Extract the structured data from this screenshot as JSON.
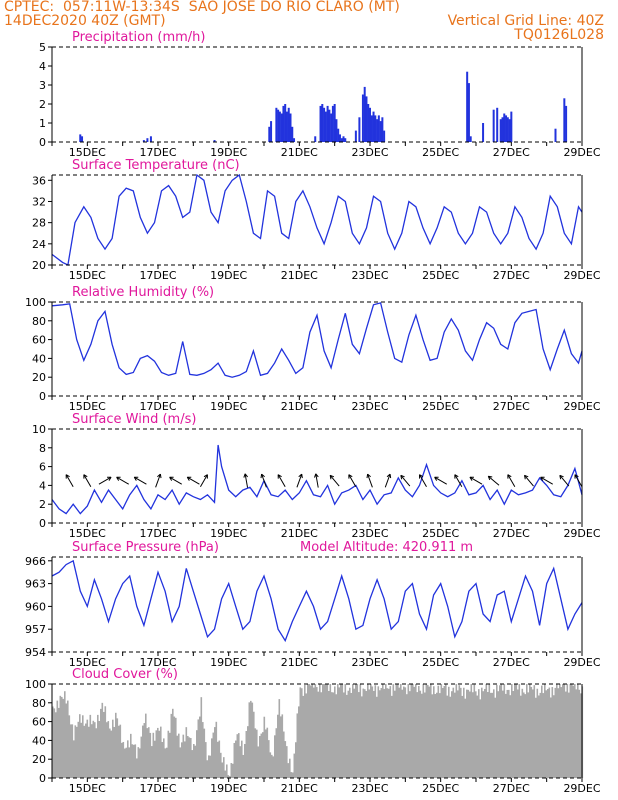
{
  "header": {
    "line1_left": "CPTEC:  057:11W-13:34S  SAO JOSE DO RIO CLARO (MT)",
    "line2_left": "14DEC2020 40Z (GMT)",
    "line2_right": "Vertical Grid Line: 40Z",
    "line3_right": "TQ0126L028"
  },
  "colors": {
    "header": "#e8741c",
    "title": "#e0189c",
    "line": "#2233dd",
    "bar": "#2233dd",
    "cloud": "#a9a9a9"
  },
  "date_labels": [
    "15DEC",
    "17DEC",
    "19DEC",
    "21DEC",
    "23DEC",
    "25DEC",
    "27DEC",
    "29DEC"
  ],
  "chart_data": [
    {
      "id": "precip",
      "type": "bar",
      "title": "Precipitation (mm/h)",
      "x_range_days": [
        14.0,
        29.0
      ],
      "ylim": [
        0,
        5
      ],
      "yticks": [
        0,
        1,
        2,
        3,
        4,
        5
      ],
      "x": [
        14.8,
        14.85,
        16.6,
        16.7,
        16.8,
        18.6,
        20.15,
        20.2,
        20.35,
        20.4,
        20.45,
        20.5,
        20.55,
        20.6,
        20.65,
        20.7,
        20.75,
        20.8,
        20.85,
        21.45,
        21.6,
        21.65,
        21.7,
        21.75,
        21.8,
        21.85,
        21.9,
        21.95,
        22.0,
        22.05,
        22.1,
        22.15,
        22.2,
        22.25,
        22.3,
        22.6,
        22.7,
        22.8,
        22.85,
        22.9,
        22.95,
        23.0,
        23.05,
        23.1,
        23.15,
        23.2,
        23.25,
        23.3,
        23.35,
        23.4,
        25.75,
        25.8,
        25.85,
        26.2,
        26.5,
        26.6,
        26.7,
        26.75,
        26.8,
        26.85,
        26.9,
        26.95,
        27.0,
        28.25,
        28.5,
        28.55
      ],
      "values": [
        0.4,
        0.3,
        0.1,
        0.2,
        0.3,
        0.1,
        0.8,
        1.1,
        1.8,
        1.7,
        1.6,
        1.5,
        1.9,
        2.0,
        1.6,
        1.8,
        1.5,
        0.8,
        0.2,
        0.3,
        1.9,
        2.0,
        1.8,
        1.6,
        1.9,
        1.7,
        1.5,
        1.9,
        2.0,
        1.2,
        0.7,
        0.4,
        0.2,
        0.3,
        0.2,
        0.6,
        1.3,
        2.5,
        2.9,
        2.4,
        2.0,
        1.8,
        1.4,
        1.6,
        1.4,
        1.2,
        1.4,
        1.1,
        1.3,
        0.6,
        3.7,
        3.1,
        0.3,
        1.0,
        1.7,
        1.8,
        1.2,
        1.3,
        1.5,
        1.4,
        1.3,
        1.2,
        1.6,
        0.7,
        2.3,
        1.9
      ]
    },
    {
      "id": "temp",
      "type": "line",
      "title": "Surface Temperature (nC)",
      "ylim": [
        20,
        37
      ],
      "yticks": [
        20,
        24,
        28,
        32,
        36
      ],
      "x": [
        14.0,
        14.3,
        14.45,
        14.65,
        14.9,
        15.1,
        15.3,
        15.5,
        15.7,
        15.9,
        16.1,
        16.3,
        16.5,
        16.7,
        16.9,
        17.1,
        17.3,
        17.5,
        17.7,
        17.9,
        18.1,
        18.3,
        18.5,
        18.7,
        18.9,
        19.1,
        19.3,
        19.5,
        19.7,
        19.9,
        20.1,
        20.3,
        20.5,
        20.7,
        20.9,
        21.1,
        21.3,
        21.5,
        21.7,
        21.9,
        22.1,
        22.3,
        22.5,
        22.7,
        22.9,
        23.1,
        23.3,
        23.5,
        23.7,
        23.9,
        24.1,
        24.3,
        24.5,
        24.7,
        24.9,
        25.1,
        25.3,
        25.5,
        25.7,
        25.9,
        26.1,
        26.3,
        26.5,
        26.7,
        26.9,
        27.1,
        27.3,
        27.5,
        27.7,
        27.9,
        28.1,
        28.3,
        28.5,
        28.7,
        28.9,
        29.0
      ],
      "values": [
        22,
        20.5,
        20,
        28,
        31,
        29,
        25,
        23,
        25,
        33,
        34.5,
        34,
        29,
        26,
        28,
        34,
        35,
        33,
        29,
        30,
        37,
        36,
        30,
        28,
        34,
        36,
        37,
        32,
        26,
        25,
        34,
        33,
        26,
        25,
        32,
        34,
        31,
        27,
        24,
        28,
        33,
        32,
        26,
        24,
        27,
        33,
        32,
        26,
        23,
        26,
        32,
        31,
        27,
        24,
        27,
        31,
        30,
        26,
        24,
        26,
        31,
        30,
        26,
        24,
        26,
        31,
        29,
        25,
        23,
        26,
        33,
        31,
        26,
        24,
        31,
        30
      ]
    },
    {
      "id": "rh",
      "type": "line",
      "title": "Relative Humidity (%)",
      "ylim": [
        0,
        100
      ],
      "yticks": [
        0,
        20,
        40,
        60,
        80,
        100
      ],
      "x": [
        14.0,
        14.3,
        14.5,
        14.7,
        14.9,
        15.1,
        15.3,
        15.5,
        15.7,
        15.9,
        16.1,
        16.3,
        16.5,
        16.7,
        16.9,
        17.1,
        17.3,
        17.5,
        17.7,
        17.9,
        18.1,
        18.3,
        18.5,
        18.7,
        18.9,
        19.1,
        19.3,
        19.5,
        19.7,
        19.9,
        20.1,
        20.3,
        20.5,
        20.7,
        20.9,
        21.1,
        21.3,
        21.5,
        21.7,
        21.9,
        22.1,
        22.3,
        22.5,
        22.7,
        22.9,
        23.1,
        23.3,
        23.5,
        23.7,
        23.9,
        24.1,
        24.3,
        24.5,
        24.7,
        24.9,
        25.1,
        25.3,
        25.5,
        25.7,
        25.9,
        26.1,
        26.3,
        26.5,
        26.7,
        26.9,
        27.1,
        27.3,
        27.5,
        27.7,
        27.9,
        28.1,
        28.3,
        28.5,
        28.7,
        28.9,
        29.0
      ],
      "values": [
        96,
        97,
        98,
        60,
        38,
        55,
        80,
        90,
        55,
        30,
        23,
        25,
        40,
        43,
        37,
        25,
        22,
        24,
        58,
        23,
        22,
        24,
        28,
        35,
        22,
        20,
        22,
        26,
        48,
        22,
        24,
        35,
        50,
        38,
        24,
        30,
        68,
        86,
        48,
        30,
        60,
        88,
        55,
        45,
        72,
        97,
        99,
        68,
        40,
        36,
        65,
        86,
        60,
        38,
        40,
        68,
        82,
        70,
        48,
        38,
        60,
        78,
        72,
        55,
        50,
        78,
        88,
        90,
        92,
        50,
        28,
        50,
        70,
        45,
        35,
        48
      ]
    },
    {
      "id": "wind",
      "type": "line",
      "title": "Surface Wind (m/s)",
      "ylim": [
        0,
        10
      ],
      "yticks": [
        0,
        2,
        4,
        6,
        8,
        10
      ],
      "x": [
        14.0,
        14.2,
        14.4,
        14.6,
        14.8,
        15.0,
        15.2,
        15.4,
        15.6,
        15.8,
        16.0,
        16.2,
        16.4,
        16.6,
        16.8,
        17.0,
        17.2,
        17.4,
        17.6,
        17.8,
        18.0,
        18.2,
        18.4,
        18.6,
        18.7,
        18.8,
        19.0,
        19.2,
        19.4,
        19.6,
        19.8,
        20.0,
        20.2,
        20.4,
        20.6,
        20.8,
        21.0,
        21.2,
        21.4,
        21.6,
        21.8,
        22.0,
        22.2,
        22.4,
        22.6,
        22.8,
        23.0,
        23.2,
        23.4,
        23.6,
        23.8,
        24.0,
        24.2,
        24.4,
        24.6,
        24.8,
        25.0,
        25.2,
        25.4,
        25.6,
        25.8,
        26.0,
        26.2,
        26.4,
        26.6,
        26.8,
        27.0,
        27.2,
        27.4,
        27.6,
        27.8,
        28.0,
        28.2,
        28.4,
        28.6,
        28.8,
        29.0
      ],
      "values": [
        2.5,
        1.5,
        1.0,
        2.0,
        1.0,
        1.8,
        3.5,
        2.2,
        3.5,
        2.5,
        1.5,
        3.0,
        4.0,
        2.5,
        1.5,
        3.0,
        2.5,
        3.5,
        2.0,
        3.2,
        2.8,
        2.5,
        3.0,
        2.2,
        8.3,
        6.0,
        3.5,
        2.8,
        3.5,
        3.8,
        2.8,
        4.5,
        3.0,
        2.8,
        3.5,
        2.5,
        3.2,
        4.5,
        3.0,
        2.8,
        4.0,
        2.0,
        3.2,
        3.5,
        4.0,
        2.5,
        3.5,
        2.0,
        3.0,
        3.2,
        4.8,
        3.5,
        2.8,
        4.0,
        6.2,
        4.0,
        3.2,
        2.8,
        3.2,
        4.5,
        3.0,
        3.2,
        4.0,
        2.5,
        3.5,
        2.0,
        3.5,
        3.0,
        3.2,
        3.5,
        4.8,
        4.0,
        3.0,
        2.8,
        4.0,
        5.8,
        3.0
      ]
    },
    {
      "id": "pressure",
      "type": "line",
      "title": "Surface Pressure (hPa)",
      "annotation": "Model Altitude: 420.911  m",
      "ylim": [
        954,
        966.5
      ],
      "yticks": [
        954,
        957,
        960,
        963,
        966
      ],
      "x": [
        14.0,
        14.2,
        14.4,
        14.6,
        14.8,
        15.0,
        15.2,
        15.4,
        15.6,
        15.8,
        16.0,
        16.2,
        16.4,
        16.6,
        16.8,
        17.0,
        17.2,
        17.4,
        17.6,
        17.8,
        18.0,
        18.2,
        18.4,
        18.6,
        18.8,
        19.0,
        19.2,
        19.4,
        19.6,
        19.8,
        20.0,
        20.2,
        20.4,
        20.6,
        20.8,
        21.0,
        21.2,
        21.4,
        21.6,
        21.8,
        22.0,
        22.2,
        22.4,
        22.6,
        22.8,
        23.0,
        23.2,
        23.4,
        23.6,
        23.8,
        24.0,
        24.2,
        24.4,
        24.6,
        24.8,
        25.0,
        25.2,
        25.4,
        25.6,
        25.8,
        26.0,
        26.2,
        26.4,
        26.6,
        26.8,
        27.0,
        27.2,
        27.4,
        27.6,
        27.8,
        28.0,
        28.2,
        28.4,
        28.6,
        28.8,
        29.0
      ],
      "values": [
        964,
        964.5,
        965.5,
        966,
        962,
        960,
        963.5,
        961,
        958,
        961,
        963,
        964,
        960,
        957.5,
        961,
        964.5,
        962,
        958,
        960,
        965,
        962,
        959,
        956,
        957,
        961,
        963,
        960,
        957,
        958,
        962,
        964,
        961,
        957,
        955.5,
        958,
        960,
        962,
        960,
        957,
        958,
        961,
        964,
        961,
        957,
        957.5,
        961,
        963.5,
        961,
        957,
        958,
        962,
        963,
        959,
        957,
        961.5,
        963,
        960,
        956,
        958,
        962,
        963,
        959,
        958,
        961.5,
        962,
        958,
        961,
        964,
        962,
        957.5,
        963,
        965,
        961,
        957,
        959,
        960.5
      ]
    },
    {
      "id": "cloud",
      "type": "area",
      "title": "Cloud Cover (%)",
      "ylim": [
        0,
        100
      ],
      "yticks": [
        0,
        20,
        40,
        60,
        80,
        100
      ],
      "x": [
        14.0,
        14.2,
        14.4,
        14.6,
        14.8,
        15.0,
        15.2,
        15.4,
        15.6,
        15.8,
        16.0,
        16.2,
        16.4,
        16.6,
        16.8,
        17.0,
        17.2,
        17.4,
        17.6,
        17.8,
        18.0,
        18.2,
        18.4,
        18.6,
        18.8,
        19.0,
        19.2,
        19.4,
        19.6,
        19.8,
        20.0,
        20.2,
        20.4,
        20.6,
        20.8,
        21.0,
        21.4,
        22.0,
        23.0,
        24.0,
        25.0,
        26.0,
        27.0,
        28.0,
        28.5,
        29.0
      ],
      "values": [
        75,
        82,
        85,
        45,
        65,
        60,
        55,
        80,
        50,
        70,
        30,
        45,
        20,
        70,
        35,
        60,
        25,
        80,
        30,
        55,
        25,
        85,
        10,
        65,
        15,
        5,
        45,
        30,
        85,
        40,
        60,
        20,
        80,
        35,
        5,
        95,
        100,
        96,
        96,
        98,
        95,
        93,
        96,
        93,
        100,
        96
      ]
    }
  ],
  "wind_arrows": [
    {
      "x": 14.5,
      "dir": 330
    },
    {
      "x": 15.0,
      "dir": 330
    },
    {
      "x": 15.5,
      "dir": 60
    },
    {
      "x": 16.0,
      "dir": 300
    },
    {
      "x": 16.5,
      "dir": 300
    },
    {
      "x": 17.0,
      "dir": 20
    },
    {
      "x": 17.5,
      "dir": 300
    },
    {
      "x": 18.0,
      "dir": 300
    },
    {
      "x": 18.3,
      "dir": 30
    },
    {
      "x": 19.5,
      "dir": 350
    },
    {
      "x": 20.0,
      "dir": 340
    },
    {
      "x": 20.5,
      "dir": 330
    },
    {
      "x": 21.0,
      "dir": 20
    },
    {
      "x": 21.5,
      "dir": 350
    },
    {
      "x": 22.0,
      "dir": 320
    },
    {
      "x": 22.5,
      "dir": 330
    },
    {
      "x": 23.0,
      "dir": 340
    },
    {
      "x": 23.5,
      "dir": 20
    },
    {
      "x": 24.0,
      "dir": 320
    },
    {
      "x": 24.5,
      "dir": 330
    },
    {
      "x": 25.0,
      "dir": 300
    },
    {
      "x": 25.5,
      "dir": 330
    },
    {
      "x": 26.0,
      "dir": 300
    },
    {
      "x": 26.5,
      "dir": 310
    },
    {
      "x": 27.0,
      "dir": 330
    },
    {
      "x": 27.5,
      "dir": 320
    },
    {
      "x": 28.0,
      "dir": 300
    },
    {
      "x": 28.5,
      "dir": 320
    },
    {
      "x": 28.9,
      "dir": 330
    }
  ]
}
